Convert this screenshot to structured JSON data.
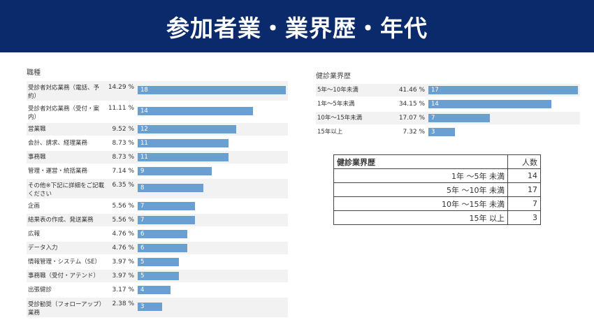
{
  "banner": {
    "title": "参加者業・業界歴・年代"
  },
  "chart_data": [
    {
      "type": "bar",
      "title": "職種",
      "orientation": "horizontal",
      "categories": [
        "受診者対応業務（電話、予約）",
        "受診者対応業務（受付・案内）",
        "営業職",
        "会計、請求、経理業務",
        "事務職",
        "管理・運営・統括業務",
        "その他※下記に詳細をご記載ください",
        "企画",
        "結果表の作成、発送業務",
        "広報",
        "データ入力",
        "情報管理・システム（SE）",
        "事務職（受付・アテンド）",
        "出張健診",
        "受診勧奨（フォローアップ）業務"
      ],
      "values": [
        18,
        14,
        12,
        11,
        11,
        9,
        8,
        7,
        7,
        6,
        6,
        5,
        5,
        4,
        3
      ],
      "percent_labels": [
        "14.29 %",
        "11.11 %",
        "9.52 %",
        "8.73 %",
        "8.73 %",
        "7.14 %",
        "6.35 %",
        "5.56 %",
        "5.56 %",
        "4.76 %",
        "4.76 %",
        "3.97 %",
        "3.97 %",
        "3.17 %",
        "2.38 %"
      ],
      "xlim": [
        0,
        18
      ],
      "grid": false,
      "colors": {
        "bar": "#6a9fd2",
        "stripe": "#f2f2f2"
      }
    },
    {
      "type": "bar",
      "title": "健診業界歴",
      "orientation": "horizontal",
      "categories": [
        "5年〜10年未満",
        "1年〜5年未満",
        "10年〜15年未満",
        "15年以上"
      ],
      "values": [
        17,
        14,
        7,
        3
      ],
      "percent_labels": [
        "41.46 %",
        "34.15 %",
        "17.07 %",
        "7.32 %"
      ],
      "xlim": [
        0,
        17
      ],
      "grid": false,
      "colors": {
        "bar": "#6a9fd2",
        "stripe": "#f2f2f2"
      }
    },
    {
      "type": "table",
      "headers": [
        "健診業界歴",
        "人数"
      ],
      "rows": [
        [
          "1年 〜5年 未満",
          "14"
        ],
        [
          "5年 〜10年 未満",
          "17"
        ],
        [
          "10年 〜15年 未満",
          "7"
        ],
        [
          "15年 以上",
          "3"
        ]
      ]
    }
  ]
}
